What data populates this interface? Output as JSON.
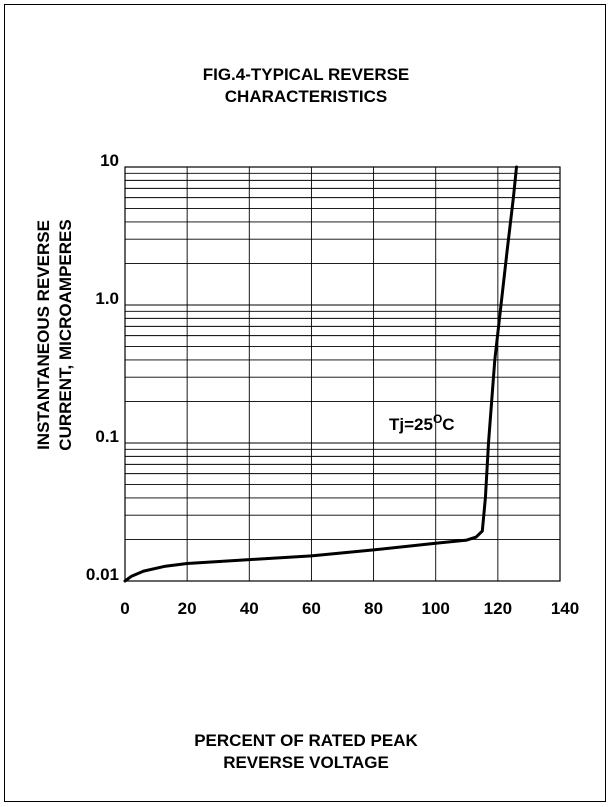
{
  "chart_data": {
    "type": "line",
    "title_lines": [
      "FIG.4-TYPICAL REVERSE",
      "CHARACTERISTICS"
    ],
    "xlabel_lines": [
      "PERCENT OF RATED PEAK",
      "REVERSE VOLTAGE"
    ],
    "ylabel_lines": [
      "INSTANTANEOUS REVERSE",
      "CURRENT, MICROAMPERES"
    ],
    "xlim": [
      0,
      140
    ],
    "ylim": [
      0.01,
      10
    ],
    "y_scale": "log",
    "grid": true,
    "x_ticks": [
      "0",
      "20",
      "40",
      "60",
      "80",
      "100",
      "120",
      "140"
    ],
    "y_ticks": [
      "0.01",
      "0.1",
      "1.0",
      "10"
    ],
    "annotation": {
      "text": "Tj=25",
      "superscript": "O",
      "suffix": "C"
    },
    "series": [
      {
        "points": [
          [
            0,
            0.01
          ],
          [
            2,
            0.0108
          ],
          [
            6,
            0.0118
          ],
          [
            13,
            0.0128
          ],
          [
            20,
            0.0134
          ],
          [
            40,
            0.0143
          ],
          [
            60,
            0.0152
          ],
          [
            80,
            0.0168
          ],
          [
            100,
            0.0188
          ],
          [
            110,
            0.0198
          ],
          [
            113,
            0.0208
          ],
          [
            115,
            0.023
          ],
          [
            116,
            0.04
          ],
          [
            117,
            0.1
          ],
          [
            119,
            0.4
          ],
          [
            121,
            1.0
          ],
          [
            123,
            2.5
          ],
          [
            125,
            6.0
          ],
          [
            126,
            10.0
          ]
        ]
      }
    ]
  }
}
